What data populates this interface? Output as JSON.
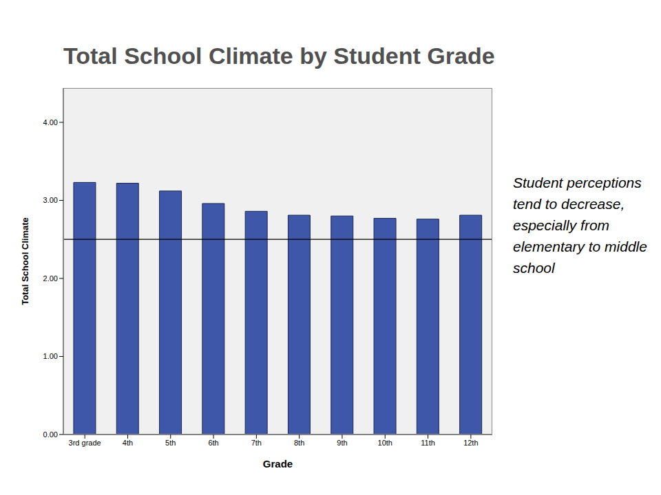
{
  "chart_data": {
    "type": "bar",
    "title": "Total School Climate by Student Grade",
    "x_label": "Grade",
    "y_label": "Total School Climate",
    "categories": [
      "3rd grade",
      "4th",
      "5th",
      "6th",
      "7th",
      "8th",
      "9th",
      "10th",
      "11th",
      "12th"
    ],
    "values": [
      3.23,
      3.22,
      3.12,
      2.96,
      2.86,
      2.81,
      2.8,
      2.77,
      2.76,
      2.81
    ],
    "color": "#3f57a8",
    "ylim": [
      0,
      4.44
    ],
    "yticks": [
      {
        "value": 0,
        "label": "0.00"
      },
      {
        "value": 1,
        "label": "1.00"
      },
      {
        "value": 2,
        "label": "2.00"
      },
      {
        "value": 3,
        "label": "3.00"
      },
      {
        "value": 4,
        "label": "4.00"
      }
    ],
    "grid": false,
    "reference_line": 2.5,
    "annotation": "Student perceptions tend to decrease, especially from elementary to middle school"
  }
}
